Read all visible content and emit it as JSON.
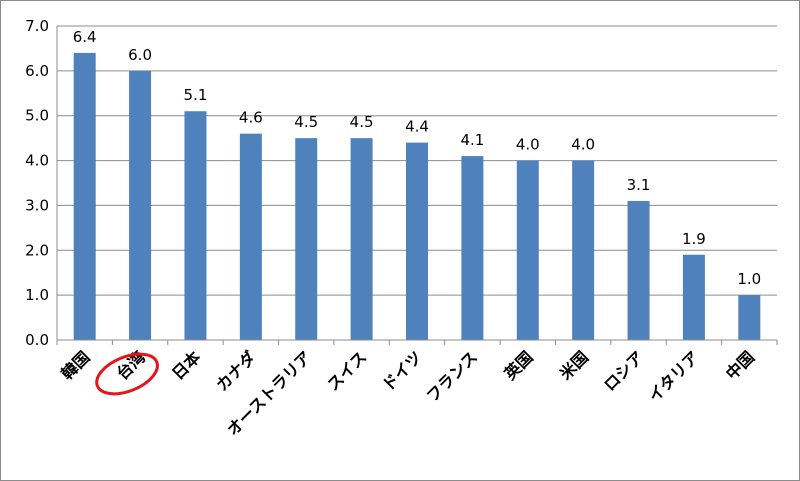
{
  "chart_data": {
    "type": "bar",
    "categories": [
      "韓国",
      "台湾",
      "日本",
      "カナダ",
      "オーストラリア",
      "スイス",
      "ドイツ",
      "フランス",
      "英国",
      "米国",
      "ロシア",
      "イタリア",
      "中国"
    ],
    "values": [
      6.4,
      6.0,
      5.1,
      4.6,
      4.5,
      4.5,
      4.4,
      4.1,
      4.0,
      4.0,
      3.1,
      1.9,
      1.0
    ],
    "data_labels": [
      "6.4",
      "6.0",
      "5.1",
      "4.6",
      "4.5",
      "4.5",
      "4.4",
      "4.1",
      "4.0",
      "4.0",
      "3.1",
      "1.9",
      "1.0"
    ],
    "y_ticks": [
      "0.0",
      "1.0",
      "2.0",
      "3.0",
      "4.0",
      "5.0",
      "6.0",
      "7.0"
    ],
    "ylim": [
      0,
      7
    ],
    "grid": true,
    "legend": "none",
    "highlighted_category": "台湾",
    "colors": {
      "bar": "#4f81bd",
      "grid": "#8c8c8c",
      "highlight_ring": "#e3141b"
    }
  }
}
